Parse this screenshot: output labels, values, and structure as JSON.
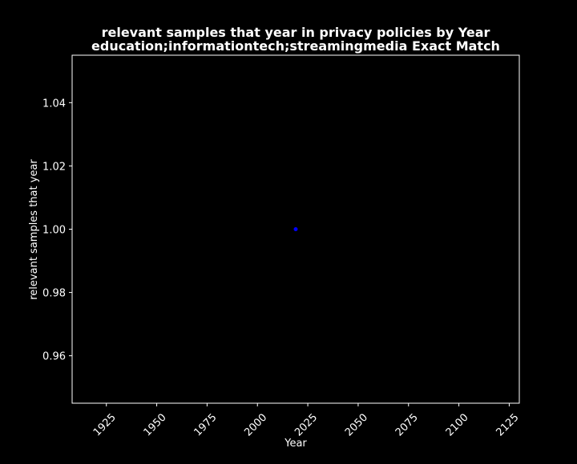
{
  "chart_data": {
    "type": "scatter",
    "title": "relevant samples that year in privacy policies by Year",
    "subtitle": "education;informationtech;streamingmedia Exact Match",
    "xlabel": "Year",
    "ylabel": "relevant samples that year",
    "xlim": [
      1908,
      2130
    ],
    "ylim": [
      0.945,
      1.055
    ],
    "xticks": [
      1925,
      1950,
      1975,
      2000,
      2025,
      2050,
      2075,
      2100,
      2125
    ],
    "yticks": [
      0.96,
      0.98,
      1.0,
      1.02,
      1.04
    ],
    "ytick_labels": [
      "0.96",
      "0.98",
      "1.00",
      "1.02",
      "1.04"
    ],
    "x_tick_rotation": 45,
    "grid": false,
    "points": [
      {
        "x": 2019,
        "y": 1.0
      }
    ],
    "colors": {
      "background": "#000000",
      "axes": "#ffffff",
      "text": "#ffffff",
      "point": "#0000ff"
    }
  }
}
